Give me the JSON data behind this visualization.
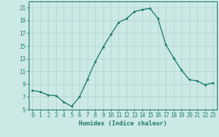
{
  "x": [
    0,
    1,
    2,
    3,
    4,
    5,
    6,
    7,
    8,
    9,
    10,
    11,
    12,
    13,
    14,
    15,
    16,
    17,
    18,
    19,
    20,
    21,
    22,
    23
  ],
  "y": [
    8.0,
    7.8,
    7.3,
    7.2,
    6.2,
    5.5,
    7.0,
    9.7,
    12.5,
    14.8,
    16.8,
    18.7,
    19.3,
    20.4,
    20.7,
    20.9,
    19.3,
    15.2,
    13.1,
    11.2,
    9.7,
    9.5,
    8.9,
    9.2
  ],
  "xlabel": "Humidex (Indice chaleur)",
  "xlim": [
    -0.5,
    23.5
  ],
  "ylim": [
    5,
    22
  ],
  "yticks": [
    5,
    7,
    9,
    11,
    13,
    15,
    17,
    19,
    21
  ],
  "xticks": [
    0,
    1,
    2,
    3,
    4,
    5,
    6,
    7,
    8,
    9,
    10,
    11,
    12,
    13,
    14,
    15,
    16,
    17,
    18,
    19,
    20,
    21,
    22,
    23
  ],
  "line_color": "#1a7a6e",
  "marker": "D",
  "marker_size": 1.8,
  "bg_color": "#cce9e5",
  "grid_color": "#b0d4cf",
  "axis_color": "#1a7a6e",
  "tick_color": "#1a7a6e",
  "label_color": "#1a7a6e",
  "xlabel_fontsize": 6.5,
  "tick_fontsize": 5.5,
  "linewidth": 1.0
}
